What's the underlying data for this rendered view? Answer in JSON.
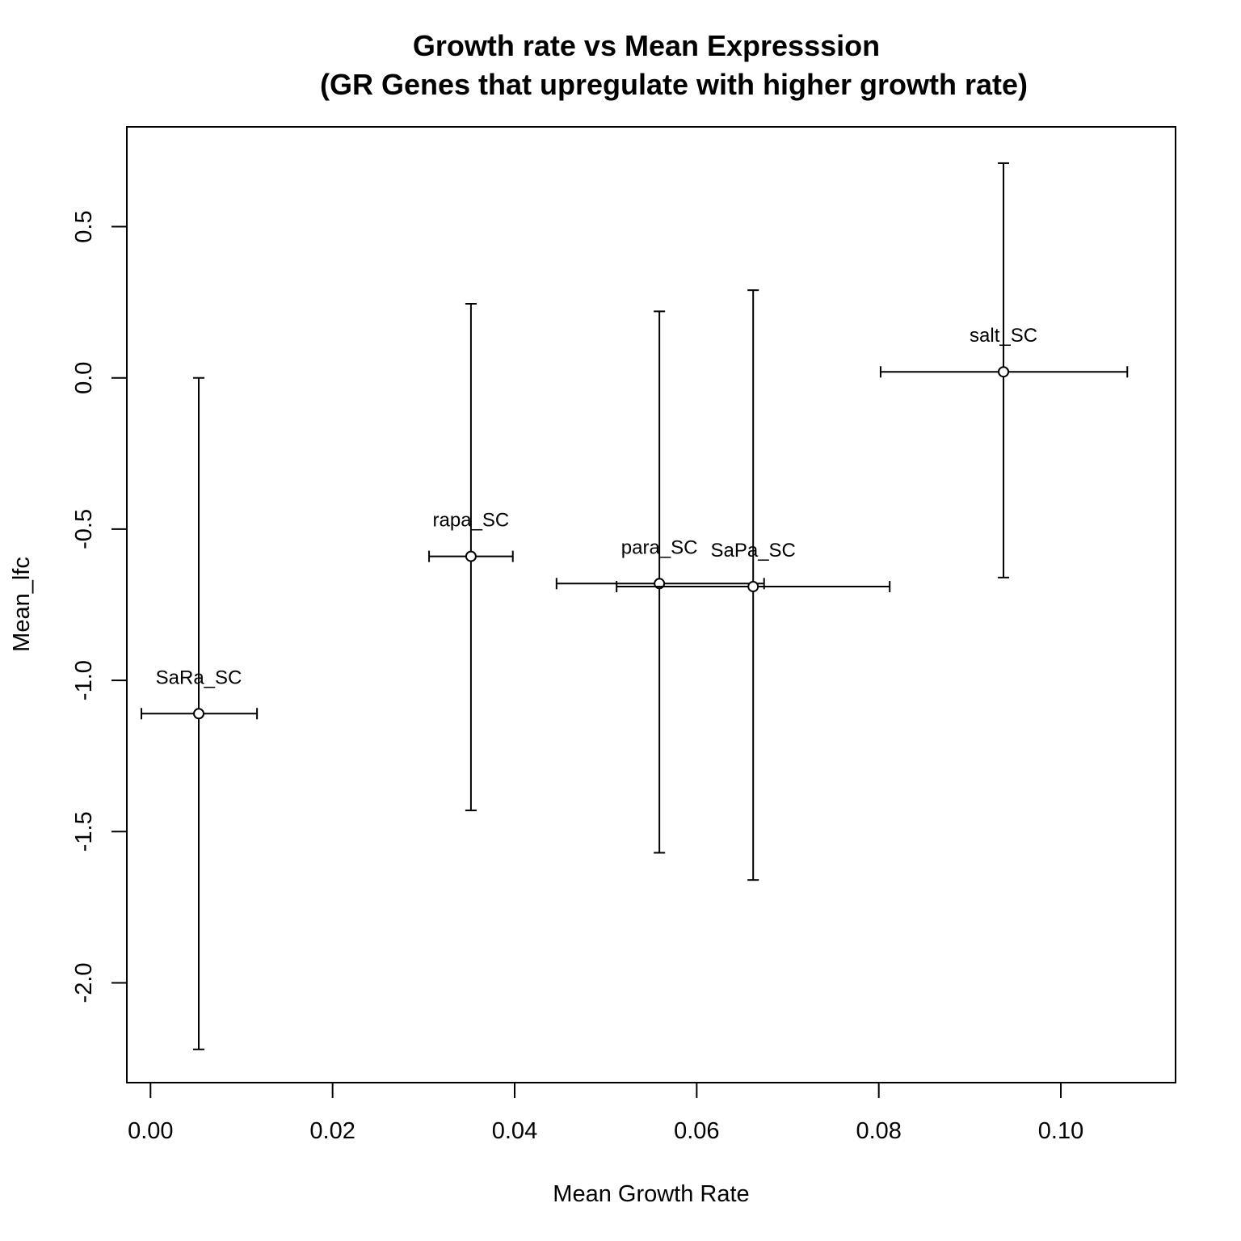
{
  "chart_data": {
    "type": "scatter",
    "title_line1": "Growth rate vs Mean Expresssion",
    "title_line2": "(GR Genes that upregulate with higher growth rate)",
    "xlabel": "Mean Growth Rate",
    "ylabel": "Mean_lfc",
    "xlim": [
      -0.0026,
      0.1126
    ],
    "ylim": [
      -2.33,
      0.83
    ],
    "x_ticks": [
      0.0,
      0.02,
      0.04,
      0.06,
      0.08,
      0.1
    ],
    "x_tick_labels": [
      "0.00",
      "0.02",
      "0.04",
      "0.06",
      "0.08",
      "0.10"
    ],
    "y_ticks": [
      -2.0,
      -1.5,
      -1.0,
      -0.5,
      0.0,
      0.5
    ],
    "y_tick_labels": [
      "-2.0",
      "-1.5",
      "-1.0",
      "-0.5",
      "0.0",
      "0.5"
    ],
    "grid": false,
    "points": [
      {
        "label": "SaRa_SC",
        "x": 0.0053,
        "y": -1.11,
        "x_low": -0.001,
        "x_high": 0.0117,
        "y_low": -2.22,
        "y_high": 0.0
      },
      {
        "label": "rapa_SC",
        "x": 0.0352,
        "y": -0.59,
        "x_low": 0.0306,
        "x_high": 0.0398,
        "y_low": -1.43,
        "y_high": 0.245
      },
      {
        "label": "para_SC",
        "x": 0.0559,
        "y": -0.68,
        "x_low": 0.0446,
        "x_high": 0.0674,
        "y_low": -1.57,
        "y_high": 0.22
      },
      {
        "label": "SaPa_SC",
        "x": 0.0662,
        "y": -0.69,
        "x_low": 0.0512,
        "x_high": 0.0812,
        "y_low": -1.66,
        "y_high": 0.29
      },
      {
        "label": "salt_SC",
        "x": 0.0937,
        "y": 0.02,
        "x_low": 0.0802,
        "x_high": 0.1073,
        "y_low": -0.66,
        "y_high": 0.71
      }
    ]
  }
}
